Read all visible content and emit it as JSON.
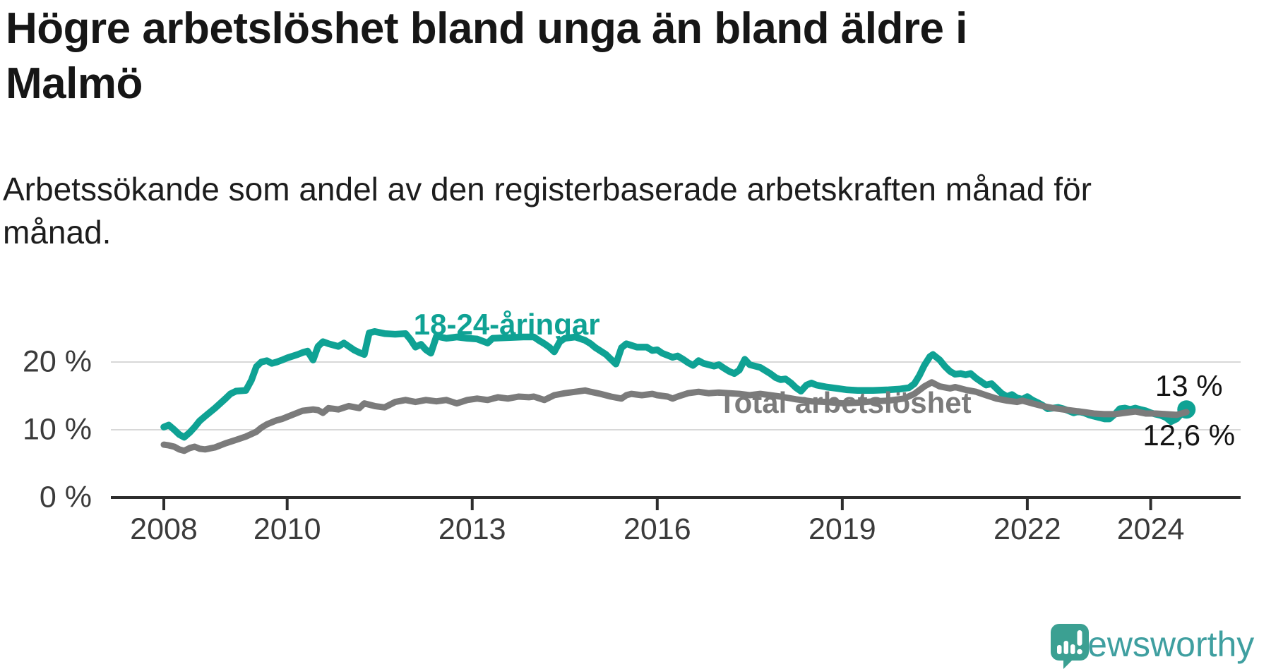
{
  "header": {
    "title_line1": "Högre arbetslöshet bland unga än bland äldre i",
    "title_line2": "Malmö",
    "subtitle_line1": "Arbetssökande som andel av den registerbaserade arbetskraften månad för",
    "subtitle_line2": "månad."
  },
  "branding": {
    "logo_text": "Newsworthy",
    "logo_icon": "bar-chart-speech-bubble-icon",
    "logo_text_color": "#3f9fa0",
    "logo_bubble_color": "#3ba092"
  },
  "chart_data": {
    "type": "line",
    "title": "Högre arbetslöshet bland unga än bland äldre i Malmö",
    "xlabel": "",
    "ylabel": "",
    "grid": "horizontal-only",
    "x_range": [
      2008.0,
      2025.45
    ],
    "ylim": [
      0,
      26
    ],
    "y_ticks": [
      {
        "value": 20,
        "label": "20 %"
      },
      {
        "value": 10,
        "label": "10 %"
      },
      {
        "value": 0,
        "label": "0 %"
      }
    ],
    "x_ticks": [
      {
        "value": 2008,
        "label": "2008"
      },
      {
        "value": 2010,
        "label": "2010"
      },
      {
        "value": 2013,
        "label": "2013"
      },
      {
        "value": 2016,
        "label": "2016"
      },
      {
        "value": 2019,
        "label": "2019"
      },
      {
        "value": 2022,
        "label": "2022"
      },
      {
        "value": 2024,
        "label": "2024"
      }
    ],
    "colors": {
      "grid": "#d8d8d8",
      "axis": "#2d2d2d",
      "tick_text": "#3b3b3b",
      "end_label_text": "#141414"
    },
    "series": [
      {
        "name": "18-24-åringar",
        "color": "#0fa294",
        "stroke_width": 9.5,
        "label": {
          "text": "18-24-åringar",
          "x": 2013.56,
          "y": 25.5
        },
        "end_dot": {
          "x": 2024.58,
          "y": 13.0,
          "radius": 13
        },
        "end_label": {
          "text": "13 %",
          "x": 2024.62,
          "y": 16.5
        },
        "points": [
          [
            2008.0,
            10.4
          ],
          [
            2008.08,
            10.7
          ],
          [
            2008.17,
            10.0
          ],
          [
            2008.25,
            9.3
          ],
          [
            2008.33,
            8.9
          ],
          [
            2008.42,
            9.6
          ],
          [
            2008.5,
            10.4
          ],
          [
            2008.58,
            11.3
          ],
          [
            2008.67,
            12.0
          ],
          [
            2008.83,
            13.2
          ],
          [
            2009.0,
            14.6
          ],
          [
            2009.08,
            15.3
          ],
          [
            2009.17,
            15.7
          ],
          [
            2009.33,
            15.8
          ],
          [
            2009.42,
            17.3
          ],
          [
            2009.5,
            19.3
          ],
          [
            2009.58,
            20.0
          ],
          [
            2009.67,
            20.2
          ],
          [
            2009.75,
            19.8
          ],
          [
            2009.83,
            20.0
          ],
          [
            2009.92,
            20.3
          ],
          [
            2010.0,
            20.6
          ],
          [
            2010.17,
            21.1
          ],
          [
            2010.25,
            21.4
          ],
          [
            2010.33,
            21.6
          ],
          [
            2010.42,
            20.3
          ],
          [
            2010.5,
            22.3
          ],
          [
            2010.58,
            23.0
          ],
          [
            2010.67,
            22.7
          ],
          [
            2010.83,
            22.3
          ],
          [
            2010.92,
            22.8
          ],
          [
            2011.0,
            22.3
          ],
          [
            2011.08,
            21.8
          ],
          [
            2011.17,
            21.4
          ],
          [
            2011.25,
            21.1
          ],
          [
            2011.33,
            24.3
          ],
          [
            2011.42,
            24.5
          ],
          [
            2011.58,
            24.2
          ],
          [
            2011.75,
            24.1
          ],
          [
            2011.92,
            24.2
          ],
          [
            2012.0,
            23.3
          ],
          [
            2012.08,
            22.2
          ],
          [
            2012.17,
            22.6
          ],
          [
            2012.25,
            21.8
          ],
          [
            2012.33,
            21.3
          ],
          [
            2012.42,
            23.8
          ],
          [
            2012.58,
            23.5
          ],
          [
            2012.75,
            23.7
          ],
          [
            2012.92,
            23.5
          ],
          [
            2013.08,
            23.4
          ],
          [
            2013.25,
            22.8
          ],
          [
            2013.33,
            23.5
          ],
          [
            2013.58,
            23.6
          ],
          [
            2013.83,
            23.7
          ],
          [
            2014.0,
            23.7
          ],
          [
            2014.08,
            23.2
          ],
          [
            2014.17,
            22.7
          ],
          [
            2014.25,
            22.2
          ],
          [
            2014.33,
            21.5
          ],
          [
            2014.42,
            23.0
          ],
          [
            2014.5,
            23.5
          ],
          [
            2014.67,
            23.7
          ],
          [
            2014.83,
            23.2
          ],
          [
            2014.92,
            22.7
          ],
          [
            2015.0,
            22.1
          ],
          [
            2015.17,
            21.1
          ],
          [
            2015.25,
            20.4
          ],
          [
            2015.33,
            19.7
          ],
          [
            2015.42,
            22.1
          ],
          [
            2015.5,
            22.7
          ],
          [
            2015.67,
            22.2
          ],
          [
            2015.83,
            22.2
          ],
          [
            2015.92,
            21.7
          ],
          [
            2016.0,
            21.8
          ],
          [
            2016.08,
            21.3
          ],
          [
            2016.25,
            20.7
          ],
          [
            2016.33,
            20.9
          ],
          [
            2016.42,
            20.4
          ],
          [
            2016.5,
            19.9
          ],
          [
            2016.58,
            19.5
          ],
          [
            2016.67,
            20.2
          ],
          [
            2016.75,
            19.8
          ],
          [
            2016.92,
            19.4
          ],
          [
            2017.0,
            19.6
          ],
          [
            2017.08,
            19.1
          ],
          [
            2017.17,
            18.6
          ],
          [
            2017.25,
            18.3
          ],
          [
            2017.33,
            18.8
          ],
          [
            2017.42,
            20.4
          ],
          [
            2017.5,
            19.6
          ],
          [
            2017.67,
            19.2
          ],
          [
            2017.83,
            18.3
          ],
          [
            2017.92,
            17.7
          ],
          [
            2018.0,
            17.4
          ],
          [
            2018.08,
            17.5
          ],
          [
            2018.17,
            16.9
          ],
          [
            2018.25,
            16.2
          ],
          [
            2018.33,
            15.7
          ],
          [
            2018.42,
            16.6
          ],
          [
            2018.5,
            16.9
          ],
          [
            2018.58,
            16.6
          ],
          [
            2018.75,
            16.3
          ],
          [
            2018.92,
            16.1
          ],
          [
            2019.08,
            15.9
          ],
          [
            2019.25,
            15.8
          ],
          [
            2019.5,
            15.8
          ],
          [
            2019.75,
            15.9
          ],
          [
            2019.92,
            16.0
          ],
          [
            2020.08,
            16.2
          ],
          [
            2020.17,
            16.8
          ],
          [
            2020.25,
            18.0
          ],
          [
            2020.33,
            19.5
          ],
          [
            2020.42,
            20.8
          ],
          [
            2020.47,
            21.1
          ],
          [
            2020.58,
            20.3
          ],
          [
            2020.67,
            19.3
          ],
          [
            2020.75,
            18.6
          ],
          [
            2020.83,
            18.2
          ],
          [
            2020.92,
            18.3
          ],
          [
            2021.0,
            18.1
          ],
          [
            2021.08,
            18.3
          ],
          [
            2021.17,
            17.6
          ],
          [
            2021.25,
            17.1
          ],
          [
            2021.33,
            16.6
          ],
          [
            2021.42,
            16.8
          ],
          [
            2021.5,
            16.1
          ],
          [
            2021.58,
            15.4
          ],
          [
            2021.67,
            14.9
          ],
          [
            2021.75,
            15.2
          ],
          [
            2021.83,
            14.7
          ],
          [
            2021.92,
            14.5
          ],
          [
            2022.0,
            14.9
          ],
          [
            2022.08,
            14.4
          ],
          [
            2022.17,
            14.0
          ],
          [
            2022.25,
            13.6
          ],
          [
            2022.33,
            13.1
          ],
          [
            2022.42,
            13.2
          ],
          [
            2022.5,
            13.3
          ],
          [
            2022.58,
            13.1
          ],
          [
            2022.67,
            12.8
          ],
          [
            2022.75,
            12.5
          ],
          [
            2022.83,
            12.7
          ],
          [
            2022.92,
            12.5
          ],
          [
            2023.0,
            12.2
          ],
          [
            2023.08,
            12.0
          ],
          [
            2023.17,
            11.8
          ],
          [
            2023.25,
            11.6
          ],
          [
            2023.33,
            11.6
          ],
          [
            2023.42,
            12.3
          ],
          [
            2023.5,
            13.1
          ],
          [
            2023.58,
            13.2
          ],
          [
            2023.67,
            13.0
          ],
          [
            2023.75,
            13.2
          ],
          [
            2023.83,
            13.0
          ],
          [
            2023.92,
            12.8
          ],
          [
            2024.0,
            12.5
          ],
          [
            2024.08,
            12.3
          ],
          [
            2024.17,
            12.1
          ],
          [
            2024.25,
            11.8
          ],
          [
            2024.33,
            11.2
          ],
          [
            2024.42,
            11.6
          ],
          [
            2024.5,
            12.4
          ],
          [
            2024.58,
            13.0
          ]
        ]
      },
      {
        "name": "Total arbetslöshet",
        "color": "#7b7b7b",
        "stroke_width": 9,
        "label": {
          "text": "Total arbetslöshet",
          "x": 2019.04,
          "y": 14.0
        },
        "end_dot": null,
        "end_label": {
          "text": "12,6 %",
          "x": 2024.62,
          "y": 9.2
        },
        "points": [
          [
            2008.0,
            7.8
          ],
          [
            2008.08,
            7.7
          ],
          [
            2008.17,
            7.5
          ],
          [
            2008.25,
            7.1
          ],
          [
            2008.33,
            6.9
          ],
          [
            2008.42,
            7.3
          ],
          [
            2008.5,
            7.5
          ],
          [
            2008.58,
            7.2
          ],
          [
            2008.67,
            7.1
          ],
          [
            2008.83,
            7.4
          ],
          [
            2009.0,
            8.0
          ],
          [
            2009.17,
            8.5
          ],
          [
            2009.33,
            9.0
          ],
          [
            2009.5,
            9.7
          ],
          [
            2009.58,
            10.3
          ],
          [
            2009.67,
            10.8
          ],
          [
            2009.83,
            11.4
          ],
          [
            2009.92,
            11.6
          ],
          [
            2010.08,
            12.2
          ],
          [
            2010.25,
            12.8
          ],
          [
            2010.42,
            13.0
          ],
          [
            2010.5,
            12.9
          ],
          [
            2010.58,
            12.5
          ],
          [
            2010.67,
            13.2
          ],
          [
            2010.83,
            13.0
          ],
          [
            2011.0,
            13.5
          ],
          [
            2011.17,
            13.2
          ],
          [
            2011.25,
            13.9
          ],
          [
            2011.42,
            13.5
          ],
          [
            2011.58,
            13.3
          ],
          [
            2011.75,
            14.1
          ],
          [
            2011.92,
            14.4
          ],
          [
            2012.08,
            14.1
          ],
          [
            2012.25,
            14.4
          ],
          [
            2012.42,
            14.2
          ],
          [
            2012.58,
            14.4
          ],
          [
            2012.75,
            13.9
          ],
          [
            2012.92,
            14.4
          ],
          [
            2013.08,
            14.6
          ],
          [
            2013.25,
            14.4
          ],
          [
            2013.42,
            14.8
          ],
          [
            2013.58,
            14.6
          ],
          [
            2013.75,
            14.9
          ],
          [
            2013.92,
            14.8
          ],
          [
            2014.0,
            14.9
          ],
          [
            2014.17,
            14.4
          ],
          [
            2014.33,
            15.1
          ],
          [
            2014.5,
            15.4
          ],
          [
            2014.67,
            15.6
          ],
          [
            2014.83,
            15.8
          ],
          [
            2014.92,
            15.6
          ],
          [
            2015.08,
            15.3
          ],
          [
            2015.25,
            14.9
          ],
          [
            2015.42,
            14.6
          ],
          [
            2015.5,
            15.1
          ],
          [
            2015.58,
            15.3
          ],
          [
            2015.75,
            15.1
          ],
          [
            2015.92,
            15.3
          ],
          [
            2016.0,
            15.1
          ],
          [
            2016.17,
            14.9
          ],
          [
            2016.25,
            14.6
          ],
          [
            2016.33,
            14.9
          ],
          [
            2016.5,
            15.4
          ],
          [
            2016.67,
            15.6
          ],
          [
            2016.83,
            15.4
          ],
          [
            2017.0,
            15.5
          ],
          [
            2017.17,
            15.4
          ],
          [
            2017.33,
            15.3
          ],
          [
            2017.5,
            15.1
          ],
          [
            2017.67,
            15.3
          ],
          [
            2017.83,
            15.1
          ],
          [
            2018.0,
            14.9
          ],
          [
            2018.25,
            14.5
          ],
          [
            2018.5,
            14.2
          ],
          [
            2018.75,
            14.1
          ],
          [
            2019.0,
            13.9
          ],
          [
            2019.25,
            14.0
          ],
          [
            2019.5,
            14.2
          ],
          [
            2019.75,
            14.3
          ],
          [
            2020.0,
            14.6
          ],
          [
            2020.17,
            15.3
          ],
          [
            2020.33,
            16.4
          ],
          [
            2020.45,
            17.0
          ],
          [
            2020.58,
            16.4
          ],
          [
            2020.75,
            16.1
          ],
          [
            2020.83,
            16.3
          ],
          [
            2021.0,
            15.9
          ],
          [
            2021.17,
            15.6
          ],
          [
            2021.33,
            15.1
          ],
          [
            2021.5,
            14.6
          ],
          [
            2021.67,
            14.3
          ],
          [
            2021.83,
            14.1
          ],
          [
            2021.92,
            14.3
          ],
          [
            2022.0,
            14.1
          ],
          [
            2022.08,
            13.9
          ],
          [
            2022.25,
            13.5
          ],
          [
            2022.42,
            13.2
          ],
          [
            2022.58,
            13.0
          ],
          [
            2022.75,
            12.8
          ],
          [
            2022.92,
            12.6
          ],
          [
            2023.08,
            12.4
          ],
          [
            2023.25,
            12.3
          ],
          [
            2023.42,
            12.3
          ],
          [
            2023.58,
            12.5
          ],
          [
            2023.75,
            12.7
          ],
          [
            2023.92,
            12.4
          ],
          [
            2024.08,
            12.4
          ],
          [
            2024.25,
            12.3
          ],
          [
            2024.42,
            12.2
          ],
          [
            2024.58,
            12.6
          ]
        ]
      }
    ]
  }
}
